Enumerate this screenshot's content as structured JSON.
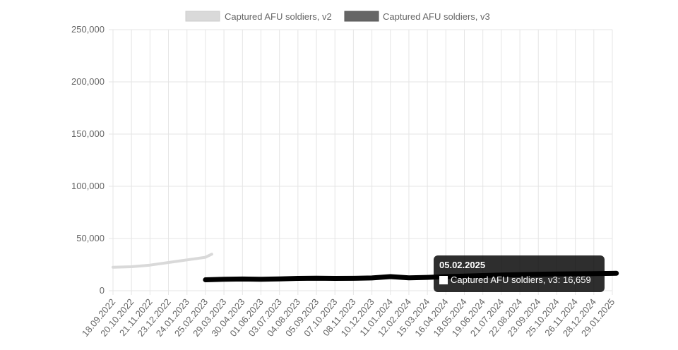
{
  "chart_data": {
    "type": "line",
    "ylim": [
      0,
      250000
    ],
    "y_ticks": [
      0,
      50000,
      100000,
      150000,
      200000,
      250000
    ],
    "y_tick_labels": [
      "0",
      "50,000",
      "100,000",
      "150,000",
      "200,000",
      "250,000"
    ],
    "x_tick_labels": [
      "18.09.2022",
      "20.10.2022",
      "21.11.2022",
      "23.12.2022",
      "24.01.2023",
      "25.02.2023",
      "29.03.2023",
      "30.04.2023",
      "01.06.2023",
      "03.07.2023",
      "04.08.2023",
      "05.09.2023",
      "07.10.2023",
      "08.11.2023",
      "10.12.2023",
      "11.01.2024",
      "12.02.2024",
      "15.03.2024",
      "16.04.2024",
      "18.05.2024",
      "19.06.2024",
      "21.07.2024",
      "22.08.2024",
      "23.09.2024",
      "25.10.2024",
      "26.11.2024",
      "28.12.2024",
      "29.01.2025"
    ],
    "grid": true,
    "legend_position": "top",
    "series": [
      {
        "name": "Captured AFU soldiers, v2",
        "color": "#d9d9d9",
        "points": [
          {
            "x": "18.09.2022",
            "y": 22500
          },
          {
            "x": "20.10.2022",
            "y": 23000
          },
          {
            "x": "21.11.2022",
            "y": 24500
          },
          {
            "x": "23.12.2022",
            "y": 27000
          },
          {
            "x": "24.01.2023",
            "y": 29500
          },
          {
            "x": "25.02.2023",
            "y": 32000
          },
          {
            "x": "08.03.2023",
            "y": 35000
          }
        ]
      },
      {
        "name": "Captured AFU soldiers, v3",
        "color": "#000000",
        "legend_color": "#666666",
        "points": [
          {
            "x": "25.02.2023",
            "y": 10500
          },
          {
            "x": "29.03.2023",
            "y": 11000
          },
          {
            "x": "30.04.2023",
            "y": 11200
          },
          {
            "x": "01.06.2023",
            "y": 11000
          },
          {
            "x": "03.07.2023",
            "y": 11300
          },
          {
            "x": "04.08.2023",
            "y": 11800
          },
          {
            "x": "05.09.2023",
            "y": 12000
          },
          {
            "x": "07.10.2023",
            "y": 11800
          },
          {
            "x": "08.11.2023",
            "y": 11900
          },
          {
            "x": "10.12.2023",
            "y": 12200
          },
          {
            "x": "11.01.2024",
            "y": 13500
          },
          {
            "x": "12.02.2024",
            "y": 12300
          },
          {
            "x": "15.03.2024",
            "y": 12800
          },
          {
            "x": "16.04.2024",
            "y": 13500
          },
          {
            "x": "18.05.2024",
            "y": 14000
          },
          {
            "x": "19.06.2024",
            "y": 14500
          },
          {
            "x": "21.07.2024",
            "y": 15000
          },
          {
            "x": "22.08.2024",
            "y": 15500
          },
          {
            "x": "23.09.2024",
            "y": 15800
          },
          {
            "x": "25.10.2024",
            "y": 16000
          },
          {
            "x": "26.11.2024",
            "y": 16200
          },
          {
            "x": "28.12.2024",
            "y": 16400
          },
          {
            "x": "29.01.2025",
            "y": 16600
          },
          {
            "x": "05.02.2025",
            "y": 16659
          }
        ]
      }
    ]
  },
  "tooltip": {
    "title": "05.02.2025",
    "label": "Captured AFU soldiers, v3: 16,659"
  }
}
